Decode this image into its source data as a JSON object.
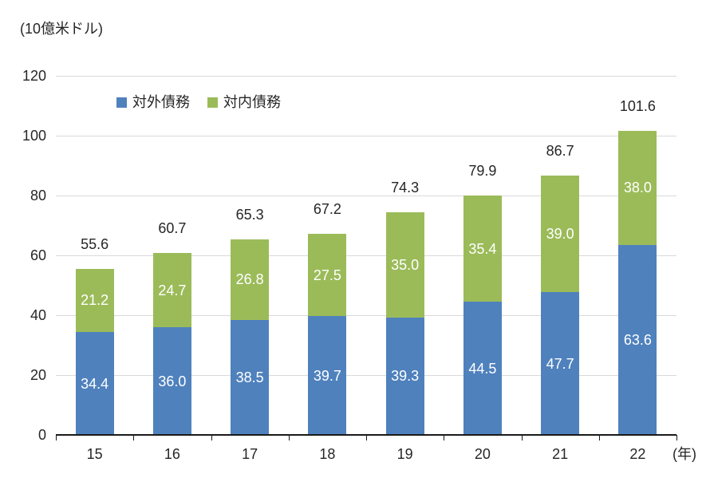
{
  "chart_data": {
    "type": "bar",
    "stacked": true,
    "unit_label": "(10億米ドル)",
    "x_axis_suffix": "(年)",
    "categories": [
      "15",
      "16",
      "17",
      "18",
      "19",
      "20",
      "21",
      "22"
    ],
    "series": [
      {
        "name": "対外債務",
        "color": "#4F81BD",
        "values": [
          34.4,
          36.0,
          38.5,
          39.7,
          39.3,
          44.5,
          47.7,
          63.6
        ]
      },
      {
        "name": "対内債務",
        "color": "#9BBB59",
        "values": [
          21.2,
          24.7,
          26.8,
          27.5,
          35.0,
          35.4,
          39.0,
          38.0
        ]
      }
    ],
    "totals": [
      55.6,
      60.7,
      65.3,
      67.2,
      74.3,
      79.9,
      86.7,
      101.6
    ],
    "ylim": [
      0,
      120
    ],
    "y_ticks": [
      0,
      20,
      40,
      60,
      80,
      100,
      120
    ],
    "grid": true,
    "legend_position": "top-left-inside",
    "colors": {
      "gridline": "#d9d9d9",
      "axis": "#1a1a1a",
      "text": "#262626",
      "segment_label": "#ffffff"
    }
  }
}
